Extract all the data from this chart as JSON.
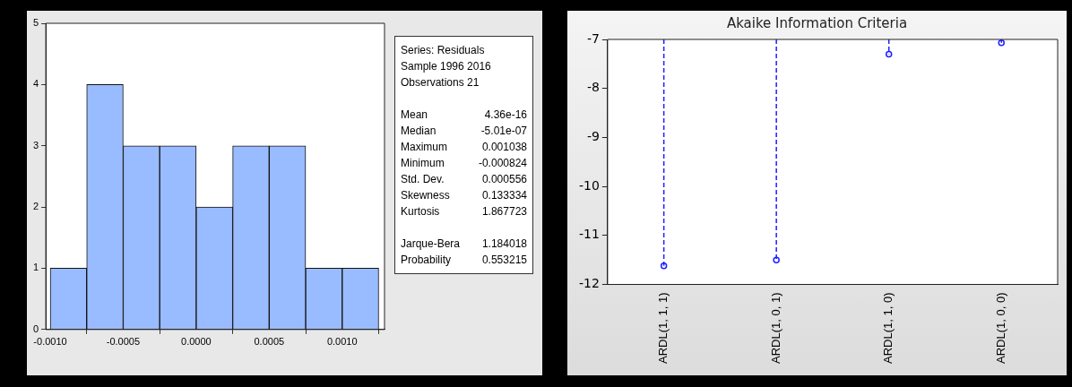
{
  "chart_data": [
    {
      "type": "histogram",
      "bins": [
        -0.001,
        -0.00075,
        -0.0005,
        -0.00025,
        0,
        0.00025,
        0.0005,
        0.00075,
        0.001,
        0.00125
      ],
      "values": [
        1,
        4,
        3,
        3,
        2,
        3,
        3,
        1,
        1
      ],
      "color": "#99bbff",
      "xlim": [
        -0.00103,
        0.00129
      ],
      "xticks": [
        {
          "value": -0.001,
          "label": "-0.0010"
        },
        {
          "value": -0.0005,
          "label": "-0.0005"
        },
        {
          "value": 0,
          "label": "0.0000"
        },
        {
          "value": 0.0005,
          "label": "0.0005"
        },
        {
          "value": 0.001,
          "label": "0.0010"
        }
      ],
      "ylim": [
        0,
        5
      ],
      "yticks": [
        0,
        1,
        2,
        3,
        4,
        5
      ],
      "grid": false,
      "legend": false,
      "annotations": [
        "Series: Residuals",
        "Sample 1996 2016",
        "Observations 21",
        "Mean",
        "4.36e-16",
        "Median",
        "-5.01e-07",
        "Maximum",
        "0.001038",
        "Minimum",
        "-0.000824",
        "Std. Dev.",
        "0.000556",
        "Skewness",
        "0.133334",
        "Kurtosis",
        "1.867723",
        "Jarque-Bera",
        "1.184018",
        "Probability",
        "0.553215"
      ]
    },
    {
      "type": "lollipop",
      "title": "Akaike Information Criteria",
      "categories": [
        "ARDL(1, 1, 1)",
        "ARDL(1, 0, 1)",
        "ARDL(1, 1, 0)",
        "ARDL(1, 0, 0)"
      ],
      "values": [
        -11.62,
        -11.5,
        -7.3,
        -7.07
      ],
      "color": "#1f1fff",
      "ylim": [
        -12,
        -7
      ],
      "yticks": [
        -12,
        -11,
        -10,
        -9,
        -8,
        -7
      ],
      "marker": "circle",
      "line_style": "dashed",
      "legend": false
    }
  ]
}
